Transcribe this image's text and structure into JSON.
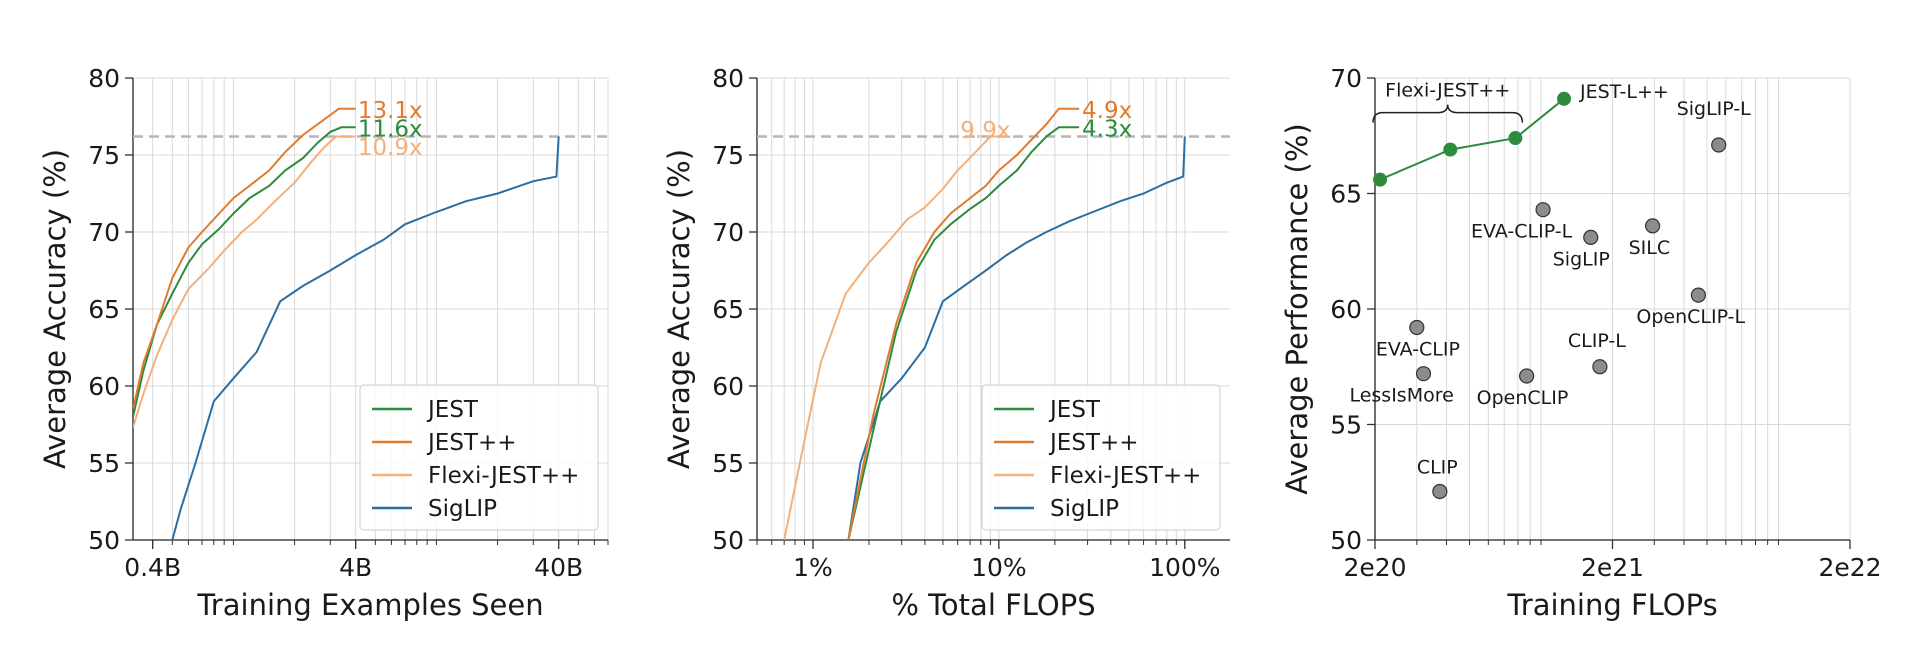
{
  "colors": {
    "jest": "#2e8b3e",
    "jestpp": "#e07b2e",
    "flexi": "#f2b07a",
    "siglip": "#2a6fa3",
    "grid": "#d9d9d9",
    "ref": "#b5b5b5",
    "marker_gray": "#8c8c8c"
  },
  "chart_data": [
    {
      "type": "line",
      "xscale": "log",
      "xlabel": "Training Examples Seen",
      "ylabel": "Average Accuracy (%)",
      "xlim": [
        0.32,
        70
      ],
      "ylim": [
        50,
        80
      ],
      "xticks": [
        {
          "value": 0.4,
          "label": "0.4B"
        },
        {
          "value": 4,
          "label": "4B"
        },
        {
          "value": 40,
          "label": "40B"
        }
      ],
      "yticks": [
        {
          "value": 50,
          "label": "50"
        },
        {
          "value": 55,
          "label": "55"
        },
        {
          "value": 60,
          "label": "60"
        },
        {
          "value": 65,
          "label": "65"
        },
        {
          "value": 70,
          "label": "70"
        },
        {
          "value": 75,
          "label": "75"
        },
        {
          "value": 80,
          "label": "80"
        }
      ],
      "grid": true,
      "reference_line": 76.2,
      "legend": "bottom-right",
      "series": [
        {
          "name": "JEST",
          "color_key": "jest",
          "x": [
            0.32,
            0.36,
            0.42,
            0.5,
            0.6,
            0.7,
            0.85,
            1.0,
            1.2,
            1.5,
            1.8,
            2.2,
            2.6,
            3.0,
            3.4,
            3.8,
            4.0
          ],
          "y": [
            58,
            61,
            64,
            66,
            68,
            69.2,
            70.2,
            71.2,
            72.2,
            73,
            74,
            74.8,
            75.8,
            76.5,
            76.8,
            76.8,
            76.8
          ]
        },
        {
          "name": "JEST++",
          "color_key": "jestpp",
          "x": [
            0.32,
            0.36,
            0.42,
            0.5,
            0.6,
            0.7,
            0.85,
            1.0,
            1.2,
            1.5,
            1.8,
            2.2,
            2.6,
            3.0,
            3.3,
            3.6,
            4.0
          ],
          "y": [
            58.5,
            61.5,
            64,
            67,
            69,
            70,
            71.2,
            72.2,
            73,
            74,
            75.2,
            76.3,
            77,
            77.6,
            78,
            78,
            78
          ]
        },
        {
          "name": "Flexi-JEST++",
          "color_key": "flexi",
          "x": [
            0.32,
            0.36,
            0.42,
            0.5,
            0.6,
            0.75,
            0.9,
            1.1,
            1.3,
            1.6,
            2.0,
            2.4,
            2.8,
            3.2,
            3.6,
            4.0
          ],
          "y": [
            57.3,
            59.5,
            62,
            64.3,
            66.3,
            67.6,
            68.8,
            70,
            70.8,
            72,
            73.2,
            74.5,
            75.5,
            76.2,
            76.2,
            76.2
          ]
        },
        {
          "name": "SigLIP",
          "color_key": "siglip",
          "x": [
            0.5,
            0.55,
            0.65,
            0.8,
            1.0,
            1.3,
            1.7,
            2.2,
            3.0,
            4.0,
            5.5,
            7.0,
            10,
            14,
            20,
            30,
            39,
            40
          ],
          "y": [
            50,
            52,
            55,
            59,
            60.5,
            62.2,
            65.5,
            66.5,
            67.5,
            68.5,
            69.5,
            70.5,
            71.3,
            72,
            72.5,
            73.3,
            73.6,
            76.2
          ]
        }
      ],
      "annotations": [
        {
          "text": "13.1x",
          "x": 4.1,
          "y": 78.0,
          "color_key": "jestpp"
        },
        {
          "text": "11.6x",
          "x": 4.1,
          "y": 76.8,
          "color_key": "jest"
        },
        {
          "text": "10.9x",
          "x": 4.1,
          "y": 75.6,
          "color_key": "flexi"
        }
      ]
    },
    {
      "type": "line",
      "xscale": "log",
      "xlabel": "% Total FLOPS",
      "ylabel": "Average Accuracy (%)",
      "xlim": [
        0.5,
        175
      ],
      "ylim": [
        50,
        80
      ],
      "xticks": [
        {
          "value": 1,
          "label": "1%"
        },
        {
          "value": 10,
          "label": "10%"
        },
        {
          "value": 100,
          "label": "100%"
        }
      ],
      "yticks": [
        {
          "value": 50,
          "label": "50"
        },
        {
          "value": 55,
          "label": "55"
        },
        {
          "value": 60,
          "label": "60"
        },
        {
          "value": 65,
          "label": "65"
        },
        {
          "value": 70,
          "label": "70"
        },
        {
          "value": 75,
          "label": "75"
        },
        {
          "value": 80,
          "label": "80"
        }
      ],
      "grid": true,
      "reference_line": 76.2,
      "legend": "bottom-right",
      "series": [
        {
          "name": "JEST",
          "color_key": "jest",
          "x": [
            1.55,
            2.1,
            2.8,
            3.6,
            4.5,
            5.5,
            7,
            8.5,
            10,
            12.5,
            15,
            18,
            21,
            25,
            27
          ],
          "y": [
            50,
            57,
            63.5,
            67.5,
            69.5,
            70.5,
            71.5,
            72.2,
            73,
            74,
            75.2,
            76.2,
            76.8,
            76.8,
            76.8
          ]
        },
        {
          "name": "JEST++",
          "color_key": "jestpp",
          "x": [
            1.55,
            2.1,
            2.8,
            3.6,
            4.5,
            5.5,
            7,
            8.5,
            10,
            12.5,
            15,
            18,
            21,
            24,
            27
          ],
          "y": [
            50,
            58,
            64,
            68,
            70,
            71.2,
            72.2,
            73,
            74,
            75,
            76,
            77,
            78,
            78,
            78
          ]
        },
        {
          "name": "Flexi-JEST++",
          "color_key": "flexi",
          "x": [
            0.7,
            0.85,
            1.1,
            1.5,
            2.0,
            2.6,
            3.2,
            4.0,
            5.0,
            6.0,
            7.5,
            9.0,
            10.5,
            11.5
          ],
          "y": [
            50,
            55,
            61.5,
            66,
            68,
            69.5,
            70.8,
            71.6,
            72.8,
            74,
            75.2,
            76.2,
            76.2,
            76.2
          ]
        },
        {
          "name": "SigLIP",
          "color_key": "siglip",
          "x": [
            1.55,
            1.8,
            2.3,
            3.0,
            4.0,
            5.0,
            6.5,
            8.5,
            11,
            14,
            18,
            24,
            32,
            45,
            60,
            80,
            98,
            100
          ],
          "y": [
            50,
            55,
            59,
            60.5,
            62.5,
            65.5,
            66.5,
            67.5,
            68.5,
            69.3,
            70,
            70.7,
            71.3,
            72,
            72.5,
            73.2,
            73.6,
            76.2
          ]
        }
      ],
      "annotations": [
        {
          "text": "4.9x",
          "x": 28,
          "y": 78.0,
          "color_key": "jestpp"
        },
        {
          "text": "4.3x",
          "x": 28,
          "y": 76.8,
          "color_key": "jest"
        },
        {
          "text": "9.9x",
          "x": 6.2,
          "y": 76.7,
          "color_key": "flexi"
        }
      ]
    },
    {
      "type": "scatter",
      "xscale": "log",
      "xlabel": "Training FLOPs",
      "ylabel": "Average Performance (%)",
      "xlim": [
        2e+20,
        2e+22
      ],
      "ylim": [
        50,
        70
      ],
      "xticks": [
        {
          "value": 2e+20,
          "label": "2e20"
        },
        {
          "value": 2e+21,
          "label": "2e21"
        },
        {
          "value": 2e+22,
          "label": "2e22"
        }
      ],
      "yticks": [
        {
          "value": 50,
          "label": "50"
        },
        {
          "value": 55,
          "label": "55"
        },
        {
          "value": 60,
          "label": "60"
        },
        {
          "value": 65,
          "label": "65"
        },
        {
          "value": 70,
          "label": "70"
        }
      ],
      "grid": true,
      "highlight_series": {
        "color_key": "jest",
        "points": [
          {
            "x": 2.1e+20,
            "y": 65.6
          },
          {
            "x": 4.15e+20,
            "y": 66.9
          },
          {
            "x": 7.8e+20,
            "y": 67.4
          },
          {
            "x": 1.25e+21,
            "y": 69.1,
            "label": "JEST-L++"
          }
        ],
        "bracket_label": "Flexi-JEST++"
      },
      "points": [
        {
          "label": "SigLIP-L",
          "x": 5.6e+21,
          "y": 67.1
        },
        {
          "label": "EVA-CLIP-L",
          "x": 1.02e+21,
          "y": 64.3
        },
        {
          "label": "SigLIP",
          "x": 1.62e+21,
          "y": 63.1
        },
        {
          "label": "SILC",
          "x": 2.95e+21,
          "y": 63.6
        },
        {
          "label": "OpenCLIP-L",
          "x": 4.6e+21,
          "y": 60.6
        },
        {
          "label": "EVA-CLIP",
          "x": 3e+20,
          "y": 59.2
        },
        {
          "label": "LessIsMore",
          "x": 3.2e+20,
          "y": 57.2
        },
        {
          "label": "OpenCLIP",
          "x": 8.7e+20,
          "y": 57.1
        },
        {
          "label": "CLIP-L",
          "x": 1.77e+21,
          "y": 57.5
        },
        {
          "label": "CLIP",
          "x": 3.75e+20,
          "y": 52.1
        }
      ]
    }
  ]
}
